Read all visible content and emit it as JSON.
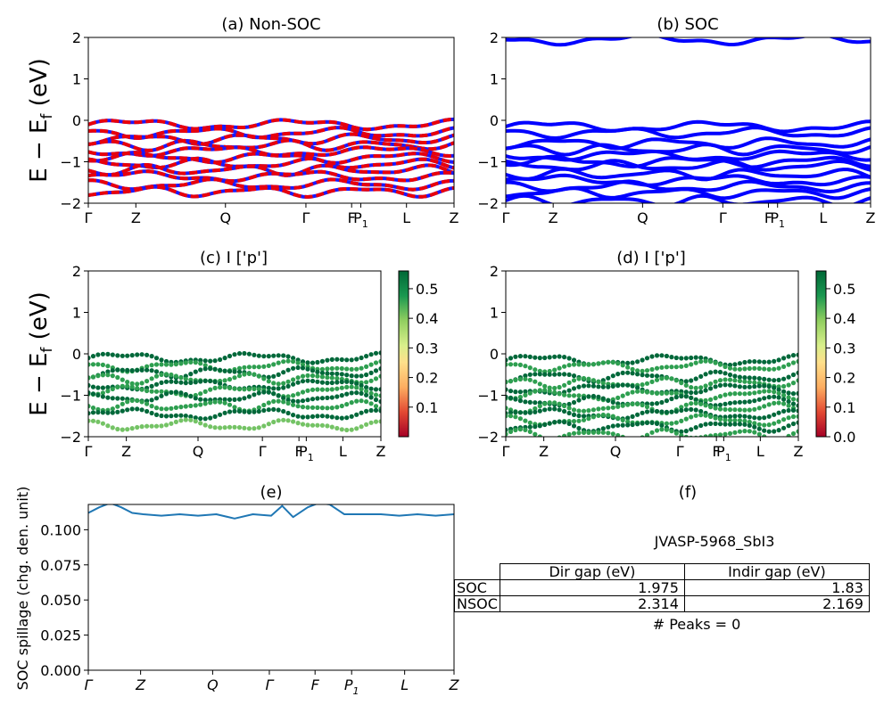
{
  "panels": {
    "a": {
      "title": "(a) Non-SOC"
    },
    "b": {
      "title": "(b) SOC"
    },
    "c": {
      "title": "(c)  I ['p']"
    },
    "d": {
      "title": "(d) I ['p']"
    },
    "e": {
      "title": "(e)"
    },
    "f": {
      "title": "(f)"
    }
  },
  "ylabel_band": "E − E",
  "ylabel_band_sub": "f",
  "ylabel_band_unit": " (eV)",
  "ylabel_spillage": "SOC spillage (chg. den. unit)",
  "kpath_labels": [
    "Γ",
    "Z",
    "Q",
    "Γ",
    "F",
    "P",
    "L",
    "Z"
  ],
  "p1_subscript": "1",
  "colors": {
    "nonsoc_a": "#e8000b",
    "nonsoc_b": "#1a1aff",
    "soc": "#0000ff",
    "spillage": "#1f77b4",
    "proj_dark": "#00683a",
    "proj_mid": "#2e9f50"
  },
  "colorbar_c_ticks": [
    "0.1",
    "0.2",
    "0.3",
    "0.4",
    "0.5"
  ],
  "colorbar_d_ticks": [
    "0.0",
    "0.1",
    "0.2",
    "0.3",
    "0.4",
    "0.5"
  ],
  "jid": "JVASP-5968_SbI3",
  "gap_table": {
    "header": [
      "Dir gap (eV)",
      "Indir gap (eV)"
    ],
    "rows": [
      {
        "label": "SOC",
        "dir": "1.975",
        "indir": "1.83"
      },
      {
        "label": "NSOC",
        "dir": "2.314",
        "indir": "2.169"
      }
    ]
  },
  "peaks_text": "# Peaks = 0",
  "chart_data": [
    {
      "panel": "a",
      "type": "line",
      "title": "(a) Non-SOC",
      "ylim": [
        -2,
        2
      ],
      "yticks": [
        -2,
        -1,
        0,
        1,
        2
      ],
      "band_centers": [
        -0.1,
        -0.3,
        -0.45,
        -0.6,
        -0.75,
        -0.9,
        -1.05,
        -1.2,
        -1.35,
        -1.55,
        -1.72
      ]
    },
    {
      "panel": "b",
      "type": "line",
      "title": "(b) SOC",
      "ylim": [
        -2,
        2
      ],
      "yticks": [
        -2,
        -1,
        0,
        1,
        2
      ],
      "band_centers": [
        -0.15,
        -0.3,
        -0.55,
        -0.7,
        -0.85,
        -1.0,
        -1.1,
        -1.3,
        -1.45,
        -1.6,
        -1.75,
        -1.95,
        1.95
      ]
    },
    {
      "panel": "c",
      "type": "scatter",
      "title": "(c)  I ['p']",
      "ylim": [
        -2,
        2
      ],
      "yticks": [
        -2,
        -1,
        0,
        1,
        2
      ],
      "band_centers": [
        -0.1,
        -0.3,
        -0.45,
        -0.6,
        -0.75,
        -0.9,
        -1.05,
        -1.25,
        -1.45,
        -1.72
      ],
      "colorbar_range": [
        0.0,
        0.56
      ]
    },
    {
      "panel": "d",
      "type": "scatter",
      "title": "(d) I ['p']",
      "ylim": [
        -2,
        2
      ],
      "yticks": [
        -2,
        -1,
        0,
        1,
        2
      ],
      "band_centers": [
        -0.15,
        -0.3,
        -0.55,
        -0.7,
        -0.85,
        -1.0,
        -1.15,
        -1.3,
        -1.45,
        -1.6,
        -1.75,
        -1.95
      ],
      "colorbar_range": [
        0.0,
        0.56
      ]
    },
    {
      "panel": "e",
      "type": "line",
      "title": "(e)",
      "ylabel": "SOC spillage (chg. den. unit)",
      "ylim": [
        0,
        0.118
      ],
      "yticks": [
        "0.000",
        "0.025",
        "0.050",
        "0.075",
        "0.100"
      ],
      "x": [
        0,
        0.03,
        0.06,
        0.09,
        0.12,
        0.15,
        0.2,
        0.25,
        0.3,
        0.35,
        0.4,
        0.45,
        0.5,
        0.53,
        0.56,
        0.6,
        0.63,
        0.66,
        0.7,
        0.75,
        0.8,
        0.85,
        0.9,
        0.95,
        1.0
      ],
      "y": [
        0.112,
        0.116,
        0.119,
        0.116,
        0.112,
        0.111,
        0.11,
        0.111,
        0.11,
        0.111,
        0.108,
        0.111,
        0.11,
        0.117,
        0.109,
        0.116,
        0.119,
        0.118,
        0.111,
        0.111,
        0.111,
        0.11,
        0.111,
        0.11,
        0.111
      ]
    }
  ]
}
